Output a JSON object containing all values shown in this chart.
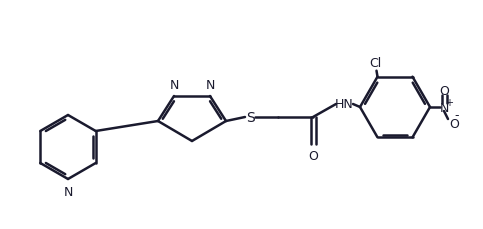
{
  "bg_color": "#ffffff",
  "line_color": "#1a1a2e",
  "line_width": 1.8,
  "font_size": 9,
  "atoms": {
    "N_pyridine": "N",
    "N1_oxadiazole": "N",
    "N2_oxadiazole": "N",
    "S": "S",
    "O_carbonyl": "O",
    "NH": "HN",
    "Cl": "Cl",
    "N_nitro": "N",
    "O1_nitro": "O",
    "O2_nitro": "O"
  }
}
